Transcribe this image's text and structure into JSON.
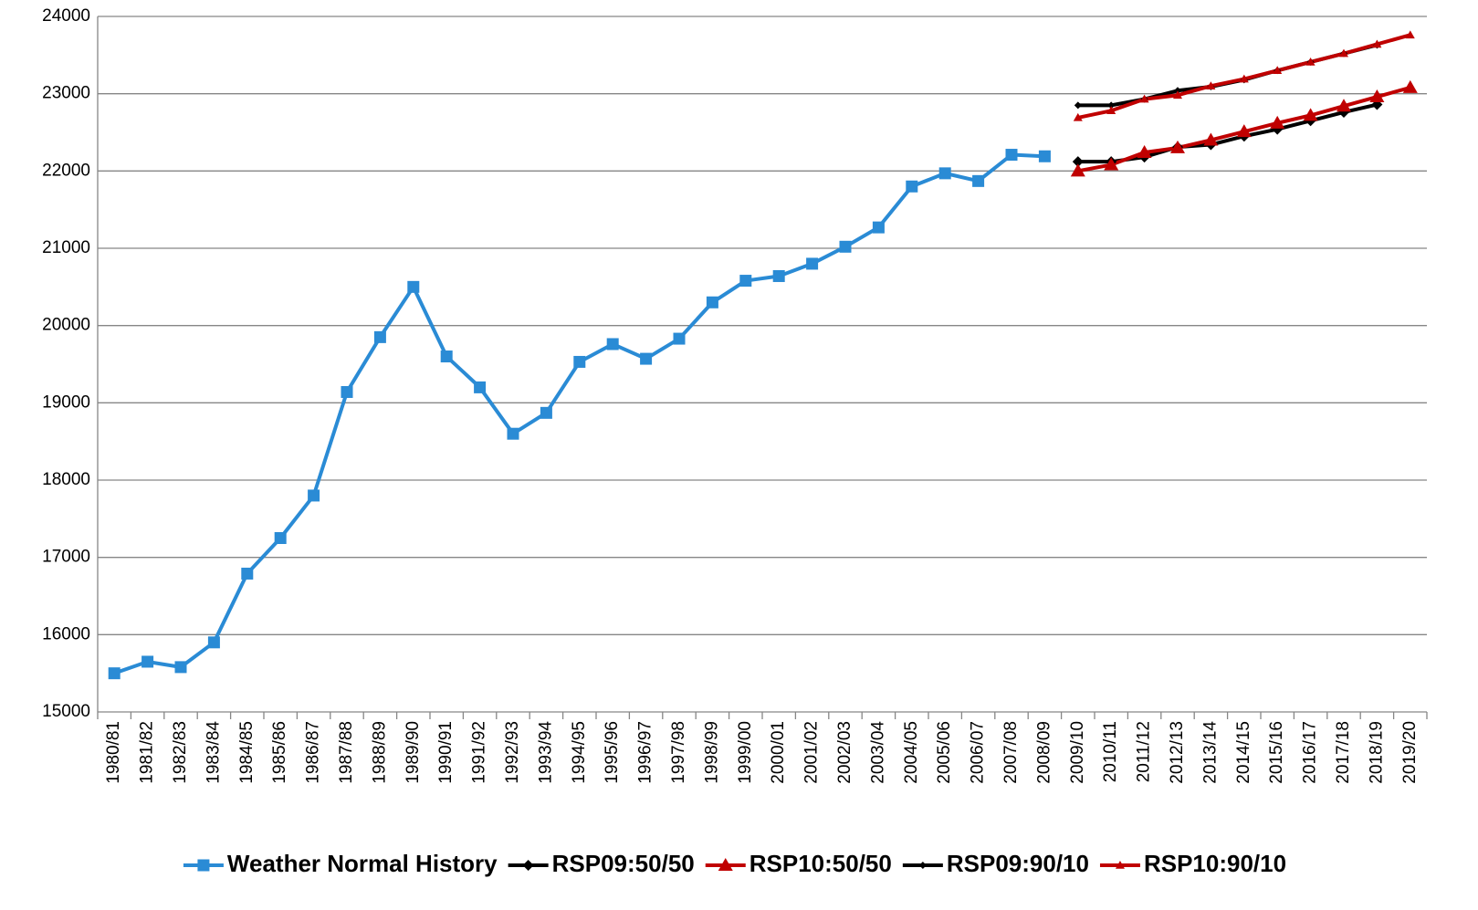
{
  "chart_data": {
    "type": "line",
    "categories": [
      "1980/81",
      "1981/82",
      "1982/83",
      "1983/84",
      "1984/85",
      "1985/86",
      "1986/87",
      "1987/88",
      "1988/89",
      "1989/90",
      "1990/91",
      "1991/92",
      "1992/93",
      "1993/94",
      "1994/95",
      "1995/96",
      "1996/97",
      "1997/98",
      "1998/99",
      "1999/00",
      "2000/01",
      "2001/02",
      "2002/03",
      "2003/04",
      "2004/05",
      "2005/06",
      "2006/07",
      "2007/08",
      "2008/09",
      "2009/10",
      "2010/11",
      "2011/12",
      "2012/13",
      "2013/14",
      "2014/15",
      "2015/16",
      "2016/17",
      "2017/18",
      "2018/19",
      "2019/20"
    ],
    "series": [
      {
        "name": "Weather Normal History",
        "color": "#2a8bd5",
        "marker": "square",
        "values": [
          15500,
          15650,
          15580,
          15900,
          16790,
          17250,
          17800,
          19140,
          19850,
          20500,
          19600,
          19200,
          18600,
          18870,
          19530,
          19760,
          19570,
          19830,
          20300,
          20580,
          20640,
          20800,
          21020,
          21270,
          21800,
          21970,
          21870,
          22210,
          22190,
          null,
          null,
          null,
          null,
          null,
          null,
          null,
          null,
          null,
          null,
          null
        ]
      },
      {
        "name": "RSP09:50/50",
        "color": "#000000",
        "marker": "diamond",
        "values": [
          null,
          null,
          null,
          null,
          null,
          null,
          null,
          null,
          null,
          null,
          null,
          null,
          null,
          null,
          null,
          null,
          null,
          null,
          null,
          null,
          null,
          null,
          null,
          null,
          null,
          null,
          null,
          null,
          null,
          22120,
          22120,
          22180,
          22310,
          22340,
          22450,
          22540,
          22650,
          22760,
          22860,
          null
        ]
      },
      {
        "name": "RSP10:50/50",
        "color": "#c00000",
        "marker": "triangle",
        "values": [
          null,
          null,
          null,
          null,
          null,
          null,
          null,
          null,
          null,
          null,
          null,
          null,
          null,
          null,
          null,
          null,
          null,
          null,
          null,
          null,
          null,
          null,
          null,
          null,
          null,
          null,
          null,
          null,
          null,
          22000,
          22080,
          22240,
          22300,
          22400,
          22510,
          22620,
          22720,
          22840,
          22960,
          23080
        ]
      },
      {
        "name": "RSP09:90/10",
        "color": "#000000",
        "marker": "small-diamond",
        "values": [
          null,
          null,
          null,
          null,
          null,
          null,
          null,
          null,
          null,
          null,
          null,
          null,
          null,
          null,
          null,
          null,
          null,
          null,
          null,
          null,
          null,
          null,
          null,
          null,
          null,
          null,
          null,
          null,
          null,
          22850,
          22850,
          22930,
          23040,
          23090,
          23180,
          23300,
          23410,
          23520,
          23630,
          null
        ]
      },
      {
        "name": "RSP10:90/10",
        "color": "#c00000",
        "marker": "small-triangle",
        "values": [
          null,
          null,
          null,
          null,
          null,
          null,
          null,
          null,
          null,
          null,
          null,
          null,
          null,
          null,
          null,
          null,
          null,
          null,
          null,
          null,
          null,
          null,
          null,
          null,
          null,
          null,
          null,
          null,
          null,
          22690,
          22780,
          22930,
          22980,
          23100,
          23190,
          23300,
          23410,
          23520,
          23640,
          23760
        ]
      }
    ],
    "ylim": [
      15000,
      24000
    ],
    "yticks": [
      15000,
      16000,
      17000,
      18000,
      19000,
      20000,
      21000,
      22000,
      23000,
      24000
    ],
    "grid": true,
    "legend": "bottom"
  }
}
